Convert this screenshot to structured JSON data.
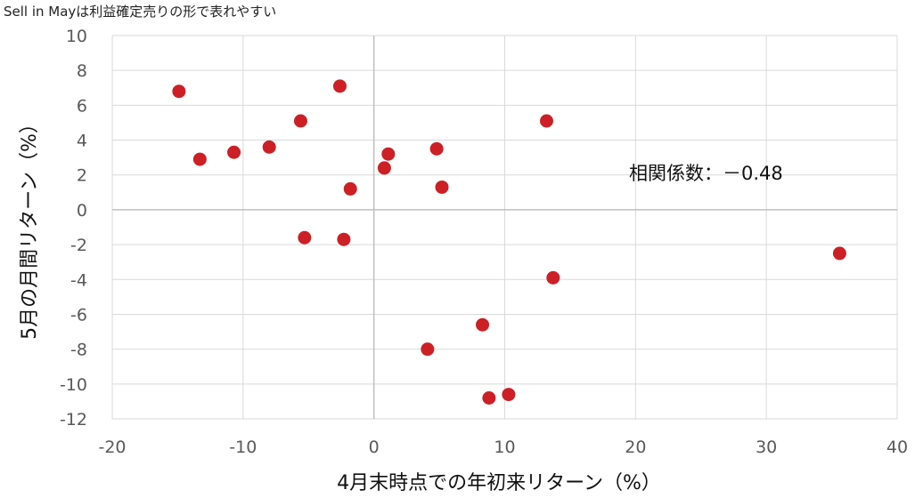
{
  "chart_data": {
    "type": "scatter",
    "title": "Sell in Mayは利益確定売りの形で表れやすい",
    "xlabel": "4月末時点での年初来リターン（%）",
    "ylabel": "5月の月間リターン（%）",
    "xlim": [
      -20,
      40
    ],
    "ylim": [
      -12,
      10
    ],
    "x_ticks": [
      -20,
      -10,
      0,
      10,
      20,
      30,
      40
    ],
    "y_ticks": [
      10,
      8,
      6,
      4,
      2,
      0,
      -2,
      -4,
      -6,
      -8,
      -10,
      -12
    ],
    "x_tick_labels": [
      "-20",
      "-10",
      "0",
      "10",
      "20",
      "30",
      "40"
    ],
    "y_tick_labels": [
      "10",
      "8",
      "6",
      "4",
      "2",
      "0",
      "-2",
      "-4",
      "-6",
      "-8",
      "-10",
      "-12"
    ],
    "grid": true,
    "annotation": "相関係数：－0.48",
    "marker_color": "#cc2026",
    "points": [
      {
        "x": -14.9,
        "y": 6.8
      },
      {
        "x": -13.3,
        "y": 2.9
      },
      {
        "x": -10.7,
        "y": 3.3
      },
      {
        "x": -8.0,
        "y": 3.6
      },
      {
        "x": -5.6,
        "y": 5.1
      },
      {
        "x": -5.3,
        "y": -1.6
      },
      {
        "x": -2.6,
        "y": 7.1
      },
      {
        "x": -2.3,
        "y": -1.7
      },
      {
        "x": -1.8,
        "y": 1.2
      },
      {
        "x": 0.8,
        "y": 2.4
      },
      {
        "x": 1.1,
        "y": 3.2
      },
      {
        "x": 4.1,
        "y": -8.0
      },
      {
        "x": 4.8,
        "y": 3.5
      },
      {
        "x": 5.2,
        "y": 1.3
      },
      {
        "x": 8.3,
        "y": -6.6
      },
      {
        "x": 8.8,
        "y": -10.8
      },
      {
        "x": 10.3,
        "y": -10.6
      },
      {
        "x": 13.2,
        "y": 5.1
      },
      {
        "x": 13.7,
        "y": -3.9
      },
      {
        "x": 35.6,
        "y": -2.5
      }
    ]
  }
}
